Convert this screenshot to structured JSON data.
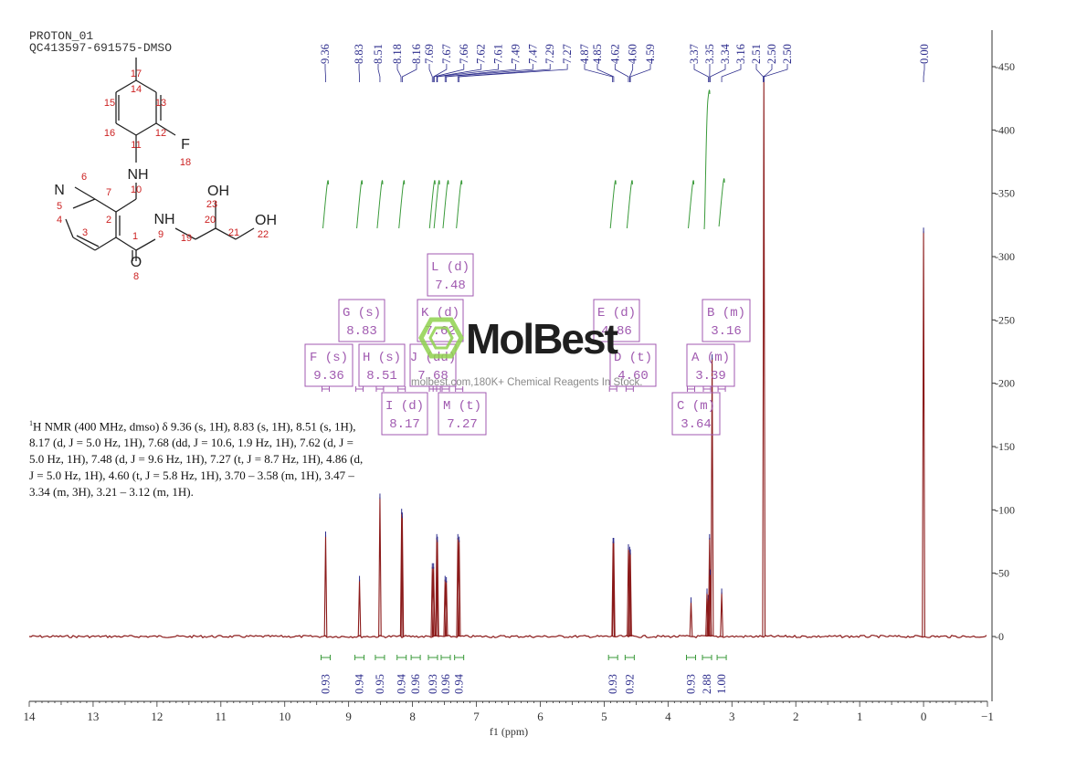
{
  "header": {
    "line1": "PROTON_01",
    "line2": "QC413597-691575-DMSO"
  },
  "summary": {
    "nucleus_sup": "1",
    "text": "H NMR (400 MHz, dmso) δ 9.36 (s, 1H), 8.83 (s, 1H), 8.51 (s, 1H), 8.17 (d, J = 5.0 Hz, 1H), 7.68 (dd, J = 10.6, 1.9 Hz, 1H), 7.62 (d, J = 5.0 Hz, 1H), 7.48 (d, J = 9.6 Hz, 1H), 7.27 (t, J = 8.7 Hz, 1H), 4.86 (d, J = 5.0 Hz, 1H), 4.60 (t, J = 5.8 Hz, 1H), 3.70 – 3.58 (m, 1H), 3.47 – 3.34 (m, 3H), 3.21 – 3.12 (m, 1H)."
  },
  "watermark": {
    "name": "MolBest",
    "url": "molbest.com,180K+ Chemical Reagents In Stock."
  },
  "colors": {
    "spectrum": "#8b1a1a",
    "peak_label": "#2c2c8c",
    "integral": "#3a9a3a",
    "multiplet_box": "#a05ab0",
    "axis": "#333333",
    "struct_black": "#222222",
    "struct_red": "#cc2222"
  },
  "structure": {
    "icon": "molecule-structure",
    "atoms": [
      {
        "id": "17",
        "text": "17"
      },
      {
        "id": "14",
        "text": "14"
      },
      {
        "id": "13",
        "text": "13"
      },
      {
        "id": "15",
        "text": "15"
      },
      {
        "id": "16",
        "text": "16"
      },
      {
        "id": "12",
        "text": "12"
      },
      {
        "id": "F",
        "text": "F"
      },
      {
        "id": "18",
        "text": "18"
      },
      {
        "id": "11",
        "text": "11"
      },
      {
        "id": "NH",
        "text": "NH"
      },
      {
        "id": "10",
        "text": "10"
      },
      {
        "id": "N",
        "text": "N"
      },
      {
        "id": "6",
        "text": "6"
      },
      {
        "id": "7",
        "text": "7"
      },
      {
        "id": "5",
        "text": "5"
      },
      {
        "id": "4",
        "text": "4"
      },
      {
        "id": "2",
        "text": "2"
      },
      {
        "id": "3",
        "text": "3"
      },
      {
        "id": "1",
        "text": "1"
      },
      {
        "id": "NH2",
        "text": "NH"
      },
      {
        "id": "9",
        "text": "9"
      },
      {
        "id": "19",
        "text": "19"
      },
      {
        "id": "20",
        "text": "20"
      },
      {
        "id": "OH1",
        "text": "OH"
      },
      {
        "id": "23",
        "text": "23"
      },
      {
        "id": "21",
        "text": "21"
      },
      {
        "id": "OH2",
        "text": "OH"
      },
      {
        "id": "22",
        "text": "22"
      },
      {
        "id": "O",
        "text": "O"
      },
      {
        "id": "8",
        "text": "8"
      }
    ]
  },
  "chart_data": {
    "type": "line",
    "title": "",
    "xlabel": "f1 (ppm)",
    "ylabel": "",
    "xlim": [
      14,
      -1
    ],
    "ylim": [
      -50,
      480
    ],
    "x_ticks": [
      "14",
      "13",
      "12",
      "11",
      "10",
      "9",
      "8",
      "7",
      "6",
      "5",
      "4",
      "3",
      "2",
      "1",
      "0",
      "-1"
    ],
    "x_tick_values": [
      14,
      13,
      12,
      11,
      10,
      9,
      8,
      7,
      6,
      5,
      4,
      3,
      2,
      1,
      0,
      -1
    ],
    "y_ticks": [
      "-0",
      "-50",
      "-100",
      "-150",
      "-200",
      "-250",
      "-300",
      "-350",
      "-400",
      "-450"
    ],
    "y_tick_values": [
      0,
      50,
      100,
      150,
      200,
      250,
      300,
      350,
      400,
      450
    ],
    "series": [
      {
        "peaks": [
          {
            "x": 9.36,
            "y": 80
          },
          {
            "x": 8.83,
            "y": 45
          },
          {
            "x": 8.51,
            "y": 110
          },
          {
            "x": 8.17,
            "y": 98
          },
          {
            "x": 8.16,
            "y": 95
          },
          {
            "x": 7.69,
            "y": 55
          },
          {
            "x": 7.67,
            "y": 55
          },
          {
            "x": 7.62,
            "y": 78
          },
          {
            "x": 7.61,
            "y": 76
          },
          {
            "x": 7.49,
            "y": 45
          },
          {
            "x": 7.47,
            "y": 44
          },
          {
            "x": 7.29,
            "y": 78
          },
          {
            "x": 7.27,
            "y": 76
          },
          {
            "x": 4.86,
            "y": 75
          },
          {
            "x": 4.85,
            "y": 75
          },
          {
            "x": 4.62,
            "y": 70
          },
          {
            "x": 4.6,
            "y": 68
          },
          {
            "x": 4.59,
            "y": 66
          },
          {
            "x": 3.64,
            "y": 28
          },
          {
            "x": 3.39,
            "y": 35
          },
          {
            "x": 3.37,
            "y": 30
          },
          {
            "x": 3.35,
            "y": 78
          },
          {
            "x": 3.34,
            "y": 50
          },
          {
            "x": 3.31,
            "y": 220
          },
          {
            "x": 3.16,
            "y": 35
          },
          {
            "x": 2.5,
            "y": 440
          },
          {
            "x": 0.0,
            "y": 320
          }
        ]
      }
    ],
    "peak_labels": [
      "9.36",
      "8.83",
      "8.51",
      "8.18",
      "8.16",
      "7.69",
      "7.67",
      "7.66",
      "7.62",
      "7.61",
      "7.49",
      "7.47",
      "7.29",
      "7.27",
      "4.87",
      "4.85",
      "4.62",
      "4.60",
      "4.59",
      "3.37",
      "3.35",
      "3.34",
      "3.16",
      "2.51",
      "2.50",
      "2.50",
      "0.00"
    ],
    "integral_curves": [
      {
        "x": 9.36
      },
      {
        "x": 8.83
      },
      {
        "x": 8.51
      },
      {
        "x": 8.17
      },
      {
        "x": 7.68
      },
      {
        "x": 7.62
      },
      {
        "x": 7.48
      },
      {
        "x": 7.27
      },
      {
        "x": 4.86
      },
      {
        "x": 4.6
      },
      {
        "x": 3.64
      },
      {
        "x": 3.39
      },
      {
        "x": 3.16
      }
    ],
    "integrals": [
      {
        "x": 9.36,
        "label": "0.93"
      },
      {
        "x": 8.83,
        "label": "0.94"
      },
      {
        "x": 8.51,
        "label": "0.95"
      },
      {
        "x": 8.17,
        "label": "0.94"
      },
      {
        "x": 7.95,
        "label": "0.96"
      },
      {
        "x": 7.68,
        "label": "0.93"
      },
      {
        "x": 7.48,
        "label": "0.96"
      },
      {
        "x": 7.27,
        "label": "0.94"
      },
      {
        "x": 4.86,
        "label": "0.93"
      },
      {
        "x": 4.6,
        "label": "0.92"
      },
      {
        "x": 3.64,
        "label": "0.93"
      },
      {
        "x": 3.39,
        "label": "2.88"
      },
      {
        "x": 3.16,
        "label": "1.00"
      }
    ],
    "multiplets": [
      {
        "id": "L",
        "name": "L (d)",
        "shift": "7.48"
      },
      {
        "id": "G",
        "name": "G (s)",
        "shift": "8.83"
      },
      {
        "id": "K",
        "name": "K (d)",
        "shift": "7.62"
      },
      {
        "id": "E",
        "name": "E (d)",
        "shift": "4.86"
      },
      {
        "id": "B",
        "name": "B (m)",
        "shift": "3.16"
      },
      {
        "id": "F",
        "name": "F (s)",
        "shift": "9.36"
      },
      {
        "id": "H",
        "name": "H (s)",
        "shift": "8.51"
      },
      {
        "id": "J",
        "name": "J (dd)",
        "shift": "7.68"
      },
      {
        "id": "D",
        "name": "D (t)",
        "shift": "4.60"
      },
      {
        "id": "A",
        "name": "A (m)",
        "shift": "3.39"
      },
      {
        "id": "I",
        "name": "I (d)",
        "shift": "8.17"
      },
      {
        "id": "M",
        "name": "M (t)",
        "shift": "7.27"
      },
      {
        "id": "C",
        "name": "C (m)",
        "shift": "3.64"
      }
    ],
    "grid": false
  }
}
